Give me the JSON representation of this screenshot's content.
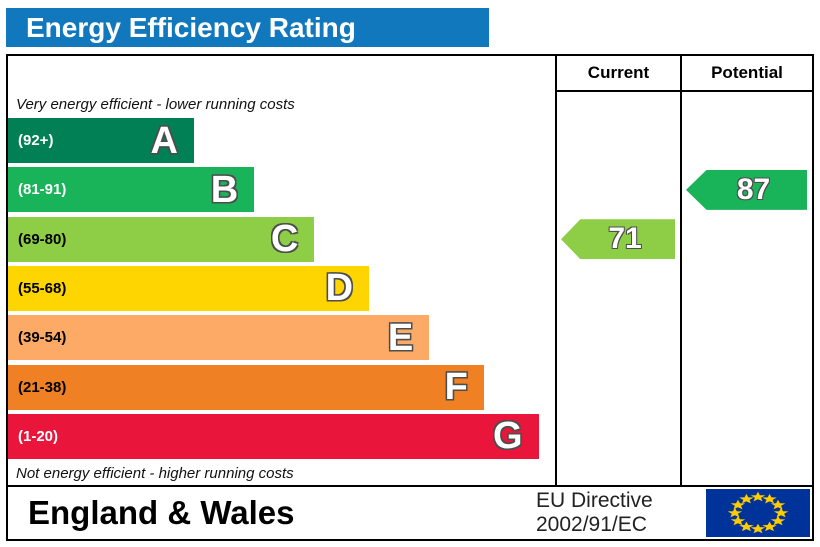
{
  "title": "Energy Efficiency Rating",
  "colors": {
    "title_bg": "#1278be",
    "flag_blue": "#003399",
    "flag_star": "#ffcc00",
    "border": "#000000"
  },
  "header": {
    "current": "Current",
    "potential": "Potential"
  },
  "notes": {
    "top": "Very energy efficient - lower running costs",
    "bottom": "Not energy efficient - higher running costs"
  },
  "bands": [
    {
      "letter": "A",
      "range": "(92+)",
      "color": "#008054",
      "text": "#ffffff",
      "width_pct": 34
    },
    {
      "letter": "B",
      "range": "(81-91)",
      "color": "#19b459",
      "text": "#ffffff",
      "width_pct": 45
    },
    {
      "letter": "C",
      "range": "(69-80)",
      "color": "#8dce46",
      "text": "#000000",
      "width_pct": 56
    },
    {
      "letter": "D",
      "range": "(55-68)",
      "color": "#ffd500",
      "text": "#000000",
      "width_pct": 66
    },
    {
      "letter": "E",
      "range": "(39-54)",
      "color": "#fcaa65",
      "text": "#000000",
      "width_pct": 77
    },
    {
      "letter": "F",
      "range": "(21-38)",
      "color": "#ef8023",
      "text": "#000000",
      "width_pct": 87
    },
    {
      "letter": "G",
      "range": "(1-20)",
      "color": "#e9153b",
      "text": "#ffffff",
      "width_pct": 97
    }
  ],
  "ratings": {
    "current": {
      "value": "71",
      "color": "#8dce46",
      "band_index": 2
    },
    "potential": {
      "value": "87",
      "color": "#19b459",
      "band_index": 1
    }
  },
  "footer": {
    "region": "England & Wales",
    "directive_line1": "EU Directive",
    "directive_line2": "2002/91/EC"
  },
  "chart_data": {
    "type": "bar",
    "title": "Energy Efficiency Rating",
    "categories": [
      "A (92+)",
      "B (81-91)",
      "C (69-80)",
      "D (55-68)",
      "E (39-54)",
      "F (21-38)",
      "G (1-20)"
    ],
    "band_colors": [
      "#008054",
      "#19b459",
      "#8dce46",
      "#ffd500",
      "#fcaa65",
      "#ef8023",
      "#e9153b"
    ],
    "bar_relative_widths_pct": [
      34,
      45,
      56,
      66,
      77,
      87,
      97
    ],
    "columns": [
      "Current",
      "Potential"
    ],
    "current_rating": 71,
    "current_band": "C",
    "potential_rating": 87,
    "potential_band": "B",
    "annotations": [
      "Very energy efficient - lower running costs",
      "Not energy efficient - higher running costs"
    ],
    "footer": "England & Wales — EU Directive 2002/91/EC",
    "legend_position": "none"
  }
}
